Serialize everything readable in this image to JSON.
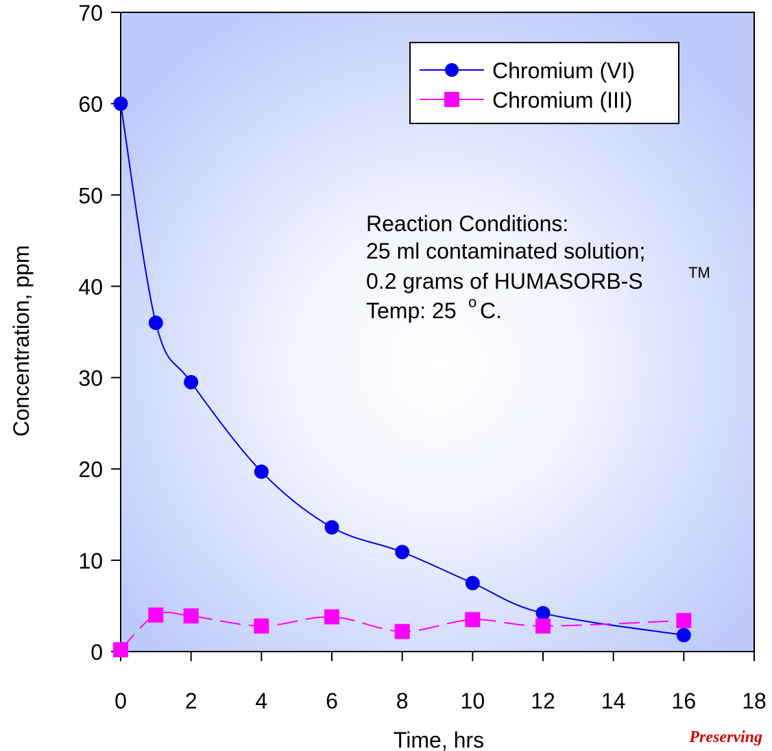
{
  "chart_data": {
    "type": "line",
    "xlabel": "Time, hrs",
    "ylabel": "Concentration, ppm",
    "xlim": [
      0,
      18
    ],
    "ylim": [
      0,
      70
    ],
    "xticks": [
      "0",
      "2",
      "4",
      "6",
      "8",
      "10",
      "12",
      "14",
      "16",
      "18"
    ],
    "yticks": [
      "0",
      "10",
      "20",
      "30",
      "40",
      "50",
      "60",
      "70"
    ],
    "legend_position": "top-right",
    "grid": false,
    "series": [
      {
        "name": "Chromium (VI)",
        "color": "#0000ee",
        "marker": "circle",
        "line_style": "solid",
        "x": [
          0,
          1,
          2,
          4,
          6,
          8,
          10,
          12,
          16
        ],
        "y": [
          60,
          36,
          29.5,
          19.7,
          13.6,
          10.9,
          7.5,
          4.2,
          1.8
        ]
      },
      {
        "name": "Chromium (III)",
        "color": "#ff00ff",
        "marker": "square",
        "line_style": "dashed",
        "x": [
          0,
          1,
          2,
          4,
          6,
          8,
          10,
          12,
          16
        ],
        "y": [
          0.2,
          4,
          3.9,
          2.8,
          3.8,
          2.2,
          3.5,
          2.8,
          3.4
        ]
      }
    ],
    "annotation": {
      "line1": "Reaction Conditions:",
      "line2": "25 ml contaminated solution;",
      "line3": "0.2 grams of HUMASORB-S",
      "line3_sup": "TM",
      "line4_a": "Temp: 25",
      "line4_sup": "o",
      "line4_b": "C."
    }
  },
  "footer_text": "Preserving",
  "colors": {
    "plot_edge": "#bccbfa",
    "plot_center": "#ffffff",
    "chromium_vi": "#0000ee",
    "chromium_iii": "#ff00ff",
    "footer": "#d40000"
  }
}
